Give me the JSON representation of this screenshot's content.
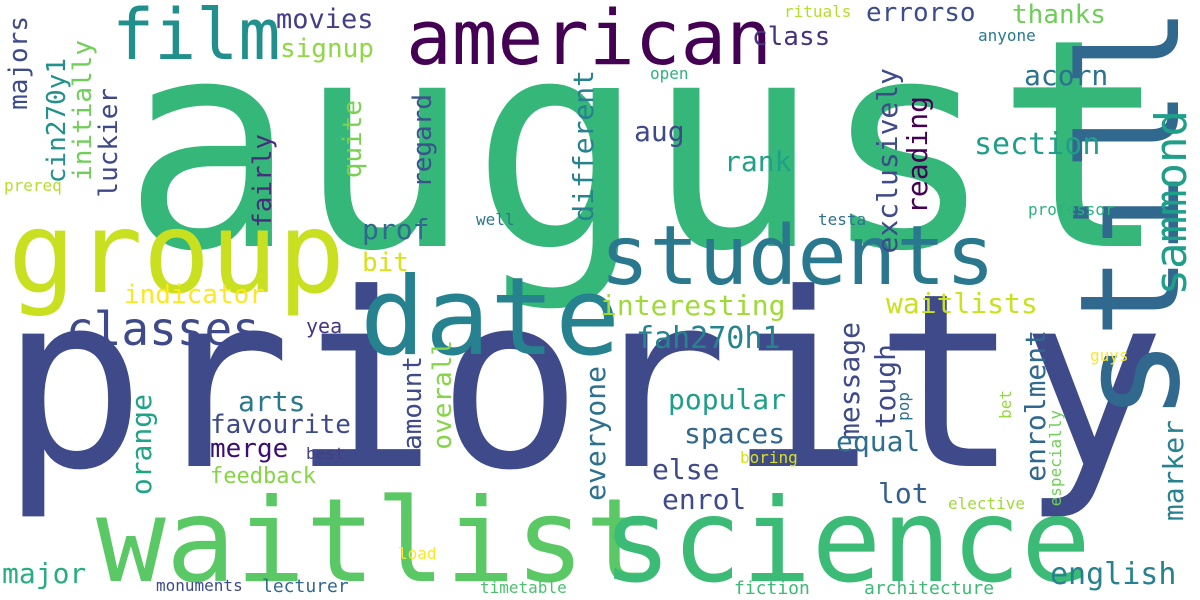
{
  "palette": {
    "dark_purple": "#440154",
    "indigo": "#3e4a89",
    "blue": "#31688e",
    "teal": "#26828e",
    "green_teal": "#1f9e89",
    "green": "#35b779",
    "light_green": "#6ece58",
    "lime": "#b5de2b",
    "yellow": "#fde725"
  },
  "words": [
    {
      "text": "august",
      "color": "#35b779"
    },
    {
      "text": "priority",
      "color": "#3e4a89"
    },
    {
      "text": "waitlist",
      "color": "#5ac864"
    },
    {
      "text": "science",
      "color": "#3bbb75"
    },
    {
      "text": "still",
      "color": "#31688e"
    },
    {
      "text": "group",
      "color": "#c8e020"
    },
    {
      "text": "date",
      "color": "#26828e"
    },
    {
      "text": "students",
      "color": "#2a788e"
    },
    {
      "text": "american",
      "color": "#440154"
    },
    {
      "text": "film",
      "color": "#21908d"
    },
    {
      "text": "classes",
      "color": "#3e4a89"
    },
    {
      "text": "sammond",
      "color": "#1f9e89"
    },
    {
      "text": "movies",
      "color": "#433e85"
    },
    {
      "text": "errorso",
      "color": "#3e4c8a"
    },
    {
      "text": "thanks",
      "color": "#6ece58"
    },
    {
      "text": "signup",
      "color": "#8fd744"
    },
    {
      "text": "class",
      "color": "#46327e"
    },
    {
      "text": "rituals",
      "color": "#b5de2b"
    },
    {
      "text": "anyone",
      "color": "#2a788e"
    },
    {
      "text": "open",
      "color": "#2db27d"
    },
    {
      "text": "acorn",
      "color": "#2c728e"
    },
    {
      "text": "majors",
      "color": "#3e4a89"
    },
    {
      "text": "cin270y1",
      "color": "#21918c"
    },
    {
      "text": "initially",
      "color": "#6ece58"
    },
    {
      "text": "luckier",
      "color": "#3f4889"
    },
    {
      "text": "fairly",
      "color": "#472d7b"
    },
    {
      "text": "quite",
      "color": "#7ad151"
    },
    {
      "text": "regard",
      "color": "#3b528b"
    },
    {
      "text": "different",
      "color": "#26828e"
    },
    {
      "text": "aug",
      "color": "#3e4989"
    },
    {
      "text": "rank",
      "color": "#1fa187"
    },
    {
      "text": "reading",
      "color": "#440154"
    },
    {
      "text": "exclusively",
      "color": "#3e4a89"
    },
    {
      "text": "section",
      "color": "#1f9e89"
    },
    {
      "text": "prereq",
      "color": "#b5de2b"
    },
    {
      "text": "well",
      "color": "#2a788e"
    },
    {
      "text": "testa",
      "color": "#2c728e"
    },
    {
      "text": "professor",
      "color": "#2db27d"
    },
    {
      "text": "prof",
      "color": "#31688e"
    },
    {
      "text": "bit",
      "color": "#d8e219"
    },
    {
      "text": "indicator",
      "color": "#fde725"
    },
    {
      "text": "interesting",
      "color": "#a0da39"
    },
    {
      "text": "waitlists",
      "color": "#cae11f"
    },
    {
      "text": "fah270h1",
      "color": "#25848e"
    },
    {
      "text": "yea",
      "color": "#453781"
    },
    {
      "text": "message",
      "color": "#3e4a89"
    },
    {
      "text": "amount",
      "color": "#3e4a89"
    },
    {
      "text": "overall",
      "color": "#86d549"
    },
    {
      "text": "tough",
      "color": "#3e4a89"
    },
    {
      "text": "enrolment",
      "color": "#31688e"
    },
    {
      "text": "marker",
      "color": "#26828e"
    },
    {
      "text": "popular",
      "color": "#1f9e89"
    },
    {
      "text": "arts",
      "color": "#2a788e"
    },
    {
      "text": "favourite",
      "color": "#3e4a89"
    },
    {
      "text": "merge",
      "color": "#3b0f70"
    },
    {
      "text": "best",
      "color": "#433e85"
    },
    {
      "text": "orange",
      "color": "#20a486"
    },
    {
      "text": "everyone",
      "color": "#2c728e"
    },
    {
      "text": "spaces",
      "color": "#31688e"
    },
    {
      "text": "equal",
      "color": "#2e6e8e"
    },
    {
      "text": "pop",
      "color": "#2c728e"
    },
    {
      "text": "guys",
      "color": "#fde725"
    },
    {
      "text": "else",
      "color": "#3e4a89"
    },
    {
      "text": "feedback",
      "color": "#86d549"
    },
    {
      "text": "boring",
      "color": "#d8e219"
    },
    {
      "text": "bet",
      "color": "#95d840"
    },
    {
      "text": "especially",
      "color": "#6ece58"
    },
    {
      "text": "enrol",
      "color": "#3e4a89"
    },
    {
      "text": "lot",
      "color": "#355f8d"
    },
    {
      "text": "elective",
      "color": "#a0da39"
    },
    {
      "text": "major",
      "color": "#27ad81"
    },
    {
      "text": "english",
      "color": "#26828e"
    },
    {
      "text": "load",
      "color": "#fde725"
    },
    {
      "text": "monuments",
      "color": "#3e4a89"
    },
    {
      "text": "lecturer",
      "color": "#31688e"
    },
    {
      "text": "timetable",
      "color": "#4ac16d"
    },
    {
      "text": "fiction",
      "color": "#3bbb75"
    },
    {
      "text": "architecture",
      "color": "#3bbb75"
    }
  ]
}
